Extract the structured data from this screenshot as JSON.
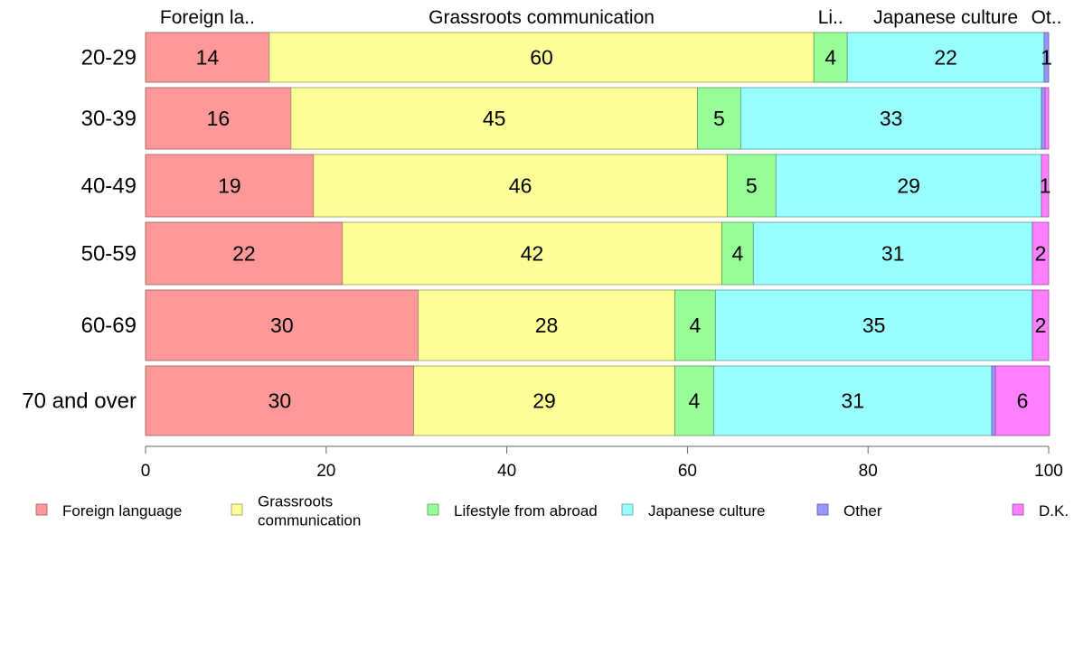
{
  "chart_data": {
    "type": "bar",
    "orientation": "horizontal",
    "stacked": true,
    "categories": [
      "20-29",
      "30-39",
      "40-49",
      "50-59",
      "60-69",
      "70 and over"
    ],
    "series": [
      {
        "name": "Foreign language",
        "top_label": "Foreign la..",
        "color": "#FF9898",
        "values": [
          13.7,
          16.1,
          18.6,
          21.8,
          30.2,
          29.7
        ],
        "labels": [
          "14",
          "16",
          "19",
          "22",
          "30",
          "30"
        ]
      },
      {
        "name": "Grassroots communication",
        "legend_lines": [
          "Grassroots",
          "communication"
        ],
        "top_label": "Grassroots communication",
        "color": "#FFFF98",
        "values": [
          60.3,
          45.0,
          45.8,
          42.0,
          28.4,
          28.9
        ],
        "labels": [
          "60",
          "45",
          "46",
          "42",
          "28",
          "29"
        ]
      },
      {
        "name": "Lifestyle from abroad",
        "top_label": "Li..",
        "color": "#98FF98",
        "values": [
          3.7,
          4.8,
          5.4,
          3.5,
          4.5,
          4.3
        ],
        "labels": [
          "4",
          "5",
          "5",
          "4",
          "4",
          "4"
        ]
      },
      {
        "name": "Japanese culture",
        "top_label": "Japanese culture",
        "color": "#98FFFF",
        "values": [
          21.8,
          33.3,
          29.4,
          30.9,
          35.1,
          30.8
        ],
        "labels": [
          "22",
          "33",
          "29",
          "31",
          "35",
          "31"
        ]
      },
      {
        "name": "Other",
        "top_label": "Ot..",
        "color": "#9898FF",
        "values": [
          0.5,
          0.4,
          0.0,
          0.0,
          0.0,
          0.4
        ],
        "labels": [
          "1",
          "",
          "",
          "",
          "",
          ""
        ]
      },
      {
        "name": "D.K.",
        "top_label": "",
        "color": "#FF80FF",
        "values": [
          0.0,
          0.4,
          0.8,
          1.8,
          1.8,
          6.0
        ],
        "labels": [
          "",
          "",
          "1",
          "2",
          "2",
          "6"
        ]
      }
    ],
    "xlim": [
      0,
      100
    ],
    "xticks": [
      0,
      20,
      40,
      60,
      80,
      100
    ],
    "grid": false,
    "legend_position": "bottom"
  }
}
